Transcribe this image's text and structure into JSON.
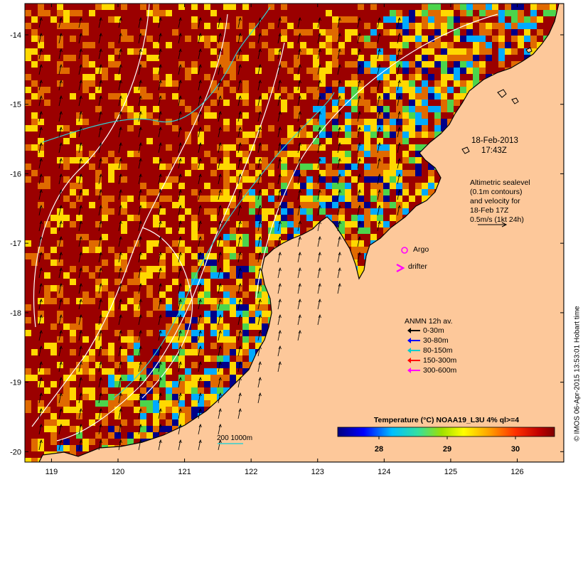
{
  "map": {
    "axis": {
      "lon_ticks": [
        "119",
        "120",
        "121",
        "122",
        "123",
        "124",
        "125",
        "126"
      ],
      "lat_ticks": [
        "-14",
        "-15",
        "-16",
        "-17",
        "-18",
        "-19",
        "-20"
      ],
      "lon_range": [
        118.6,
        126.7
      ],
      "lat_range": [
        -13.55,
        -20.15
      ]
    },
    "date_line1": "18-Feb-2013",
    "date_line2": "17:43Z",
    "altimetry": {
      "line1": "Altimetric sealevel",
      "line2": "(0.1m contours)",
      "line3": "and velocity for",
      "line4": "18-Feb 17Z",
      "line5": "0.5m/s (1kt 24h)"
    },
    "markers": {
      "argo_label": "Argo",
      "drifter_label": "drifter"
    },
    "anmn": {
      "title": "ANMN 12h av.",
      "items": [
        {
          "label": "0-30m",
          "color": "#000000"
        },
        {
          "label": "30-80m",
          "color": "#0000ff"
        },
        {
          "label": "80-150m",
          "color": "#00cccc"
        },
        {
          "label": "150-300m",
          "color": "#ff0000"
        },
        {
          "label": "300-600m",
          "color": "#ff00ff"
        }
      ]
    },
    "colorbar": {
      "title": "Temperature (°C) NOAA19_L3U 4% ql>=4",
      "ticks": [
        "28",
        "29",
        "30"
      ]
    },
    "isobath_label": "200  1000m",
    "credit": "© IMOS 06-Apr-2015 13:53:01 Hobart time",
    "colors": {
      "land": "#fdc89a",
      "sst_hot": "#9b0000",
      "sst_warm": "#e06a00",
      "sst_mid": "#ffd800",
      "sst_cool": "#4cd44c",
      "sst_cold": "#00aaff",
      "sst_coldest": "#000088"
    }
  }
}
